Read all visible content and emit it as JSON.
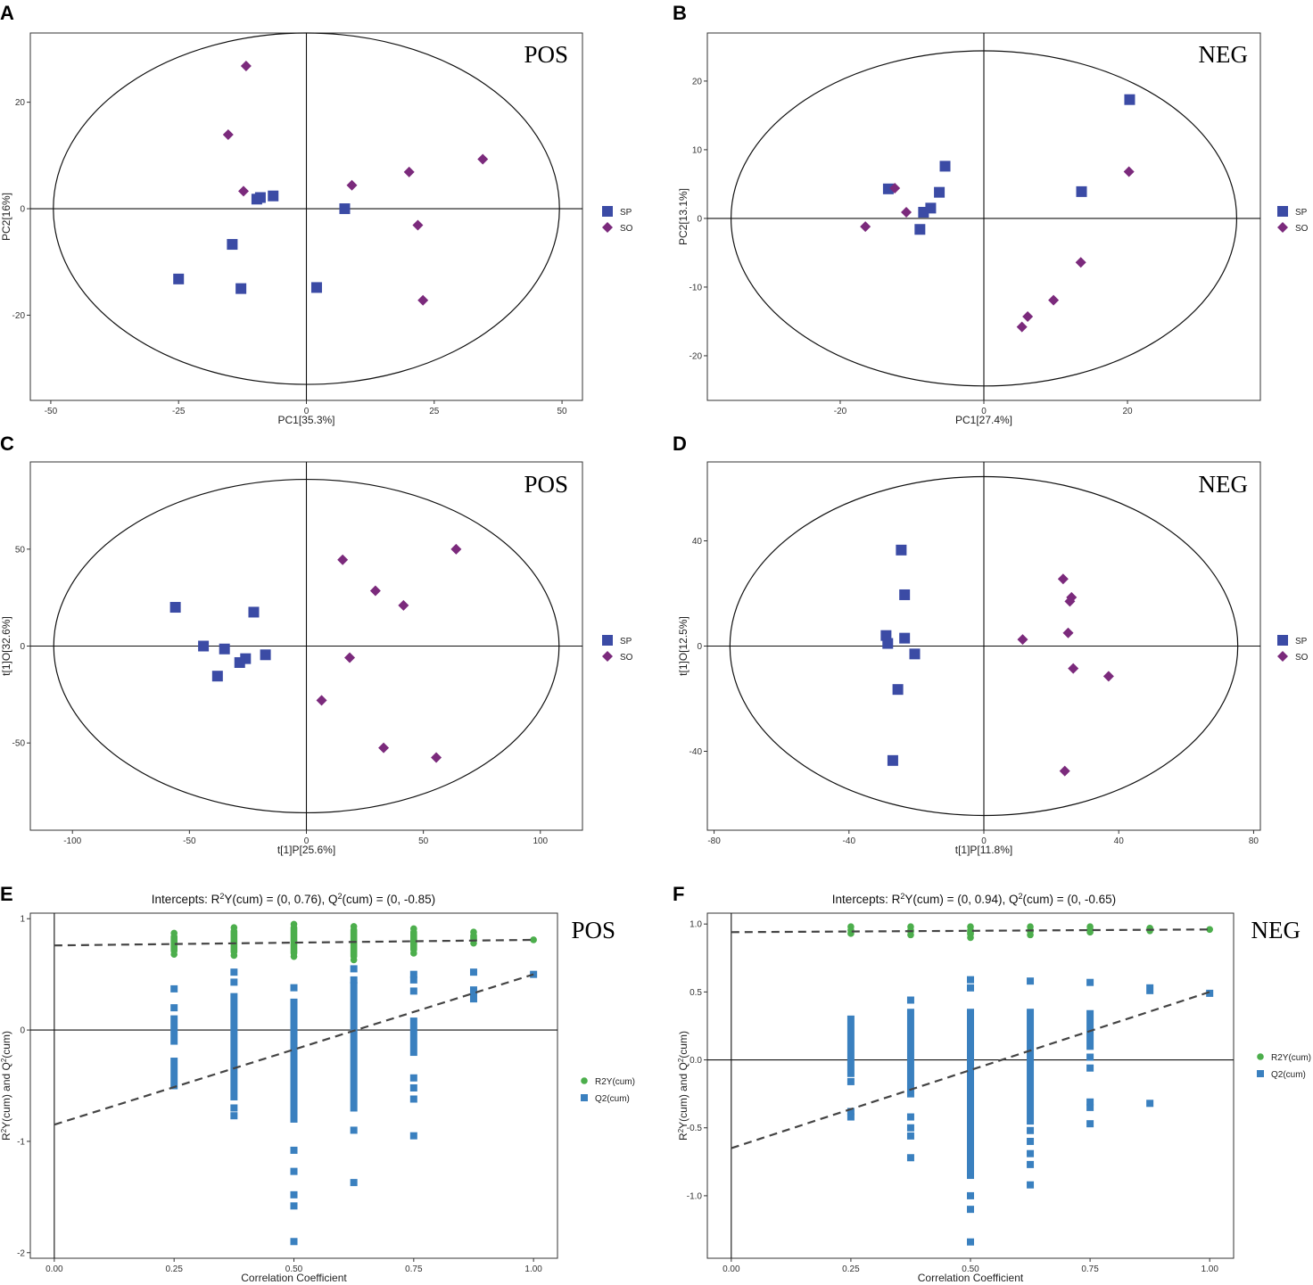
{
  "colors": {
    "SP": "#3b4ba5",
    "SO": "#7b2a7c",
    "R2Y": "#4cae4c",
    "Q2": "#3a80bf",
    "dash": "#444444"
  },
  "chart_data": [
    {
      "id": "A",
      "type": "scatter",
      "mode": "POS",
      "xlabel": "PC1[35.3%]",
      "ylabel": "PC2[16%]",
      "xlim": [
        -54,
        54
      ],
      "ylim": [
        -36,
        33
      ],
      "xticks": [
        -50,
        -25,
        0,
        25,
        50
      ],
      "yticks": [
        -20,
        0,
        20
      ],
      "ellipse": {
        "rx": 49.5,
        "ry": 33
      },
      "legend": [
        "SP",
        "SO"
      ],
      "series": [
        {
          "name": "SP",
          "marker": "square",
          "points": [
            [
              -25,
              -13.2
            ],
            [
              -14.5,
              -6.7
            ],
            [
              -12.8,
              -15
            ],
            [
              -9.7,
              1.8
            ],
            [
              -9,
              2.1
            ],
            [
              -6.5,
              2.4
            ],
            [
              7.5,
              0
            ],
            [
              2,
              -14.8
            ]
          ]
        },
        {
          "name": "SO",
          "marker": "diamond",
          "points": [
            [
              -11.8,
              26.8
            ],
            [
              -15.3,
              13.9
            ],
            [
              -12.3,
              3.3
            ],
            [
              8.9,
              4.4
            ],
            [
              20.1,
              6.9
            ],
            [
              34.5,
              9.3
            ],
            [
              21.8,
              -3.1
            ],
            [
              22.8,
              -17.2
            ]
          ]
        }
      ]
    },
    {
      "id": "B",
      "type": "scatter",
      "mode": "NEG",
      "xlabel": "PC1[27.4%]",
      "ylabel": "PC2[13.1%]",
      "xlim": [
        -38.5,
        38.5
      ],
      "ylim": [
        -26.5,
        27
      ],
      "xticks": [
        -20,
        0,
        20
      ],
      "yticks": [
        -20,
        -10,
        0,
        10,
        20
      ],
      "ellipse": {
        "rx": 35.2,
        "ry": 24.4
      },
      "legend": [
        "SP",
        "SO"
      ],
      "series": [
        {
          "name": "SP",
          "marker": "square",
          "points": [
            [
              -13.3,
              4.3
            ],
            [
              -8.4,
              0.9
            ],
            [
              -7.4,
              1.5
            ],
            [
              -6.2,
              3.8
            ],
            [
              -5.4,
              7.6
            ],
            [
              -8.9,
              -1.6
            ],
            [
              13.6,
              3.9
            ],
            [
              20.3,
              17.3
            ]
          ]
        },
        {
          "name": "SO",
          "marker": "diamond",
          "points": [
            [
              -12.4,
              4.4
            ],
            [
              -10.8,
              0.9
            ],
            [
              -16.5,
              -1.2
            ],
            [
              13.5,
              -6.4
            ],
            [
              9.7,
              -11.9
            ],
            [
              6.1,
              -14.3
            ],
            [
              5.3,
              -15.8
            ],
            [
              20.2,
              6.8
            ]
          ]
        }
      ]
    },
    {
      "id": "C",
      "type": "scatter",
      "mode": "POS",
      "xlabel": "t[1]P[25.6%]",
      "ylabel": "t[1]O[32.6%]",
      "xlim": [
        -118,
        118
      ],
      "ylim": [
        -95,
        95
      ],
      "xticks": [
        -100,
        -50,
        0,
        50,
        100
      ],
      "yticks": [
        -50,
        0,
        50
      ],
      "ellipse": {
        "rx": 108,
        "ry": 86
      },
      "legend": [
        "SP",
        "SO"
      ],
      "series": [
        {
          "name": "SP",
          "marker": "square",
          "points": [
            [
              -56,
              20
            ],
            [
              -44,
              0
            ],
            [
              -35,
              -1.5
            ],
            [
              -26,
              -6.5
            ],
            [
              -28.5,
              -8.5
            ],
            [
              -22.5,
              17.5
            ],
            [
              -17.5,
              -4.5
            ],
            [
              -38,
              -15.5
            ]
          ]
        },
        {
          "name": "SO",
          "marker": "diamond",
          "points": [
            [
              15.5,
              44.5
            ],
            [
              29.5,
              28.5
            ],
            [
              41.5,
              21
            ],
            [
              64,
              50
            ],
            [
              18.5,
              -6
            ],
            [
              6.5,
              -28
            ],
            [
              33,
              -52.5
            ],
            [
              55.5,
              -57.5
            ]
          ]
        }
      ]
    },
    {
      "id": "D",
      "type": "scatter",
      "mode": "NEG",
      "xlabel": "t[1]P[11.8%]",
      "ylabel": "t[1]O[12.5%]",
      "xlim": [
        -82,
        82
      ],
      "ylim": [
        -70,
        70
      ],
      "xticks": [
        -80,
        -40,
        0,
        40,
        80
      ],
      "yticks": [
        -40,
        0,
        40
      ],
      "ellipse": {
        "rx": 75.3,
        "ry": 64.4
      },
      "legend": [
        "SP",
        "SO"
      ],
      "series": [
        {
          "name": "SP",
          "marker": "square",
          "points": [
            [
              -24.5,
              36.5
            ],
            [
              -23.5,
              19.5
            ],
            [
              -29,
              4
            ],
            [
              -28.5,
              1
            ],
            [
              -23.5,
              3
            ],
            [
              -20.5,
              -3
            ],
            [
              -25.5,
              -16.5
            ],
            [
              -27,
              -43.5
            ]
          ]
        },
        {
          "name": "SO",
          "marker": "diamond",
          "points": [
            [
              23.5,
              25.5
            ],
            [
              26,
              18.5
            ],
            [
              25.5,
              17
            ],
            [
              11.5,
              2.5
            ],
            [
              25,
              5
            ],
            [
              26.5,
              -8.5
            ],
            [
              37,
              -11.5
            ],
            [
              24,
              -47.5
            ]
          ]
        }
      ]
    },
    {
      "id": "E",
      "type": "scatter",
      "mode": "POS",
      "title": "Intercepts: R²Y(cum) = (0, 0.76), Q²(cum) = (0, -0.85)",
      "xlabel": "Correlation Coefficient",
      "ylabel": "R²Y(cum) and Q²(cum)",
      "xlim": [
        -0.05,
        1.05
      ],
      "ylim": [
        -2.05,
        1.05
      ],
      "xticks": [
        0.0,
        0.25,
        0.5,
        0.75,
        1.0
      ],
      "xtick_labels": [
        "0.00",
        "0.25",
        "0.50",
        "0.75",
        "1.00"
      ],
      "yticks": [
        -2,
        -1,
        0,
        1
      ],
      "ytick_labels": [
        "-2",
        "-1",
        "0",
        "1"
      ],
      "legend": [
        "R2Y(cum)",
        "Q2(cum)"
      ],
      "r2y_line": [
        [
          0,
          0.76
        ],
        [
          1,
          0.81
        ]
      ],
      "q2_line": [
        [
          0,
          -0.85
        ],
        [
          1,
          0.5
        ]
      ],
      "series": [
        {
          "name": "R2Y(cum)",
          "marker": "circle",
          "columns": [
            {
              "x": 0.25,
              "ranges": [
                [
                  0.68,
                  0.87
                ]
              ]
            },
            {
              "x": 0.375,
              "ranges": [
                [
                  0.67,
                  0.92
                ]
              ]
            },
            {
              "x": 0.5,
              "ranges": [
                [
                  0.66,
                  0.95
                ]
              ]
            },
            {
              "x": 0.625,
              "ranges": [
                [
                  0.63,
                  0.93
                ]
              ]
            },
            {
              "x": 0.75,
              "ranges": [
                [
                  0.69,
                  0.91
                ]
              ]
            },
            {
              "x": 0.875,
              "ranges": [
                [
                  0.78,
                  0.88
                ]
              ]
            }
          ],
          "points": [
            [
              1,
              0.81
            ]
          ]
        },
        {
          "name": "Q2(cum)",
          "marker": "square",
          "columns": [
            {
              "x": 0.25,
              "ranges": [
                [
                  -0.5,
                  -0.28
                ],
                [
                  -0.1,
                  0.1
                ]
              ],
              "extra": [
                0.2,
                0.37
              ]
            },
            {
              "x": 0.375,
              "ranges": [
                [
                  -0.6,
                  0.3
                ]
              ],
              "extra": [
                -0.77,
                -0.7,
                0.43,
                0.52
              ]
            },
            {
              "x": 0.5,
              "ranges": [
                [
                  -0.8,
                  0.25
                ]
              ],
              "extra": [
                -1.08,
                -1.27,
                -1.48,
                -1.58,
                -1.9,
                0.38
              ]
            },
            {
              "x": 0.625,
              "ranges": [
                [
                  -0.7,
                  0.4
                ]
              ],
              "extra": [
                -0.9,
                -1.37,
                0.45,
                0.55
              ]
            },
            {
              "x": 0.75,
              "ranges": [
                [
                  -0.2,
                  0.08
                ]
              ],
              "extra": [
                -0.43,
                -0.52,
                -0.62,
                -0.95,
                0.35,
                0.45,
                0.5
              ]
            },
            {
              "x": 0.875,
              "ranges": [
                [
                  0.28,
                  0.36
                ]
              ],
              "extra": [
                0.52
              ]
            }
          ],
          "points": [
            [
              1,
              0.5
            ]
          ]
        }
      ]
    },
    {
      "id": "F",
      "type": "scatter",
      "mode": "NEG",
      "title": "Intercepts: R²Y(cum) = (0, 0.94), Q²(cum) = (0, -0.65)",
      "xlabel": "Correlation Coefficient",
      "ylabel": "R²Y(cum) and Q²(cum)",
      "xlim": [
        -0.05,
        1.05
      ],
      "ylim": [
        -1.46,
        1.08
      ],
      "xticks": [
        0.0,
        0.25,
        0.5,
        0.75,
        1.0
      ],
      "xtick_labels": [
        "0.00",
        "0.25",
        "0.50",
        "0.75",
        "1.00"
      ],
      "yticks": [
        -1.0,
        -0.5,
        0.0,
        0.5,
        1.0
      ],
      "ytick_labels": [
        "-1.0",
        "-0.5",
        "0.0",
        "0.5",
        "1.0"
      ],
      "legend": [
        "R2Y(cum)",
        "Q2(cum)"
      ],
      "r2y_line": [
        [
          0,
          0.94
        ],
        [
          1,
          0.96
        ]
      ],
      "q2_line": [
        [
          0,
          -0.65
        ],
        [
          1,
          0.5
        ]
      ],
      "series": [
        {
          "name": "R2Y(cum)",
          "marker": "circle",
          "columns": [
            {
              "x": 0.25,
              "ranges": [
                [
                  0.93,
                  0.98
                ]
              ]
            },
            {
              "x": 0.375,
              "ranges": [
                [
                  0.92,
                  0.98
                ]
              ]
            },
            {
              "x": 0.5,
              "ranges": [
                [
                  0.9,
                  0.98
                ]
              ]
            },
            {
              "x": 0.625,
              "ranges": [
                [
                  0.92,
                  0.98
                ]
              ]
            },
            {
              "x": 0.75,
              "ranges": [
                [
                  0.94,
                  0.98
                ]
              ]
            },
            {
              "x": 0.875,
              "ranges": [
                [
                  0.95,
                  0.97
                ]
              ]
            }
          ],
          "points": [
            [
              1,
              0.96
            ]
          ]
        },
        {
          "name": "Q2(cum)",
          "marker": "square",
          "columns": [
            {
              "x": 0.25,
              "ranges": [
                [
                  -0.05,
                  0.3
                ]
              ],
              "extra": [
                -0.42,
                -0.38,
                -0.16,
                -0.1
              ]
            },
            {
              "x": 0.375,
              "ranges": [
                [
                  -0.25,
                  0.35
                ]
              ],
              "extra": [
                -0.72,
                -0.56,
                -0.5,
                -0.42,
                0.44
              ]
            },
            {
              "x": 0.5,
              "ranges": [
                [
                  -0.75,
                  0.35
                ]
              ],
              "extra": [
                -0.8,
                -0.85,
                -1.0,
                -1.1,
                -1.34,
                0.53,
                0.59
              ]
            },
            {
              "x": 0.625,
              "ranges": [
                [
                  -0.45,
                  0.35
                ]
              ],
              "extra": [
                -0.52,
                -0.6,
                -0.69,
                -0.77,
                -0.92,
                0.58
              ]
            },
            {
              "x": 0.75,
              "ranges": [
                [
                  0.1,
                  0.34
                ]
              ],
              "extra": [
                -0.06,
                0.02,
                -0.31,
                -0.35,
                -0.47,
                0.57
              ]
            },
            {
              "x": 0.875,
              "ranges": [
                [
                  0.51,
                  0.53
                ]
              ],
              "extra": [
                -0.32
              ]
            }
          ],
          "points": [
            [
              1,
              0.49
            ]
          ]
        }
      ]
    }
  ]
}
